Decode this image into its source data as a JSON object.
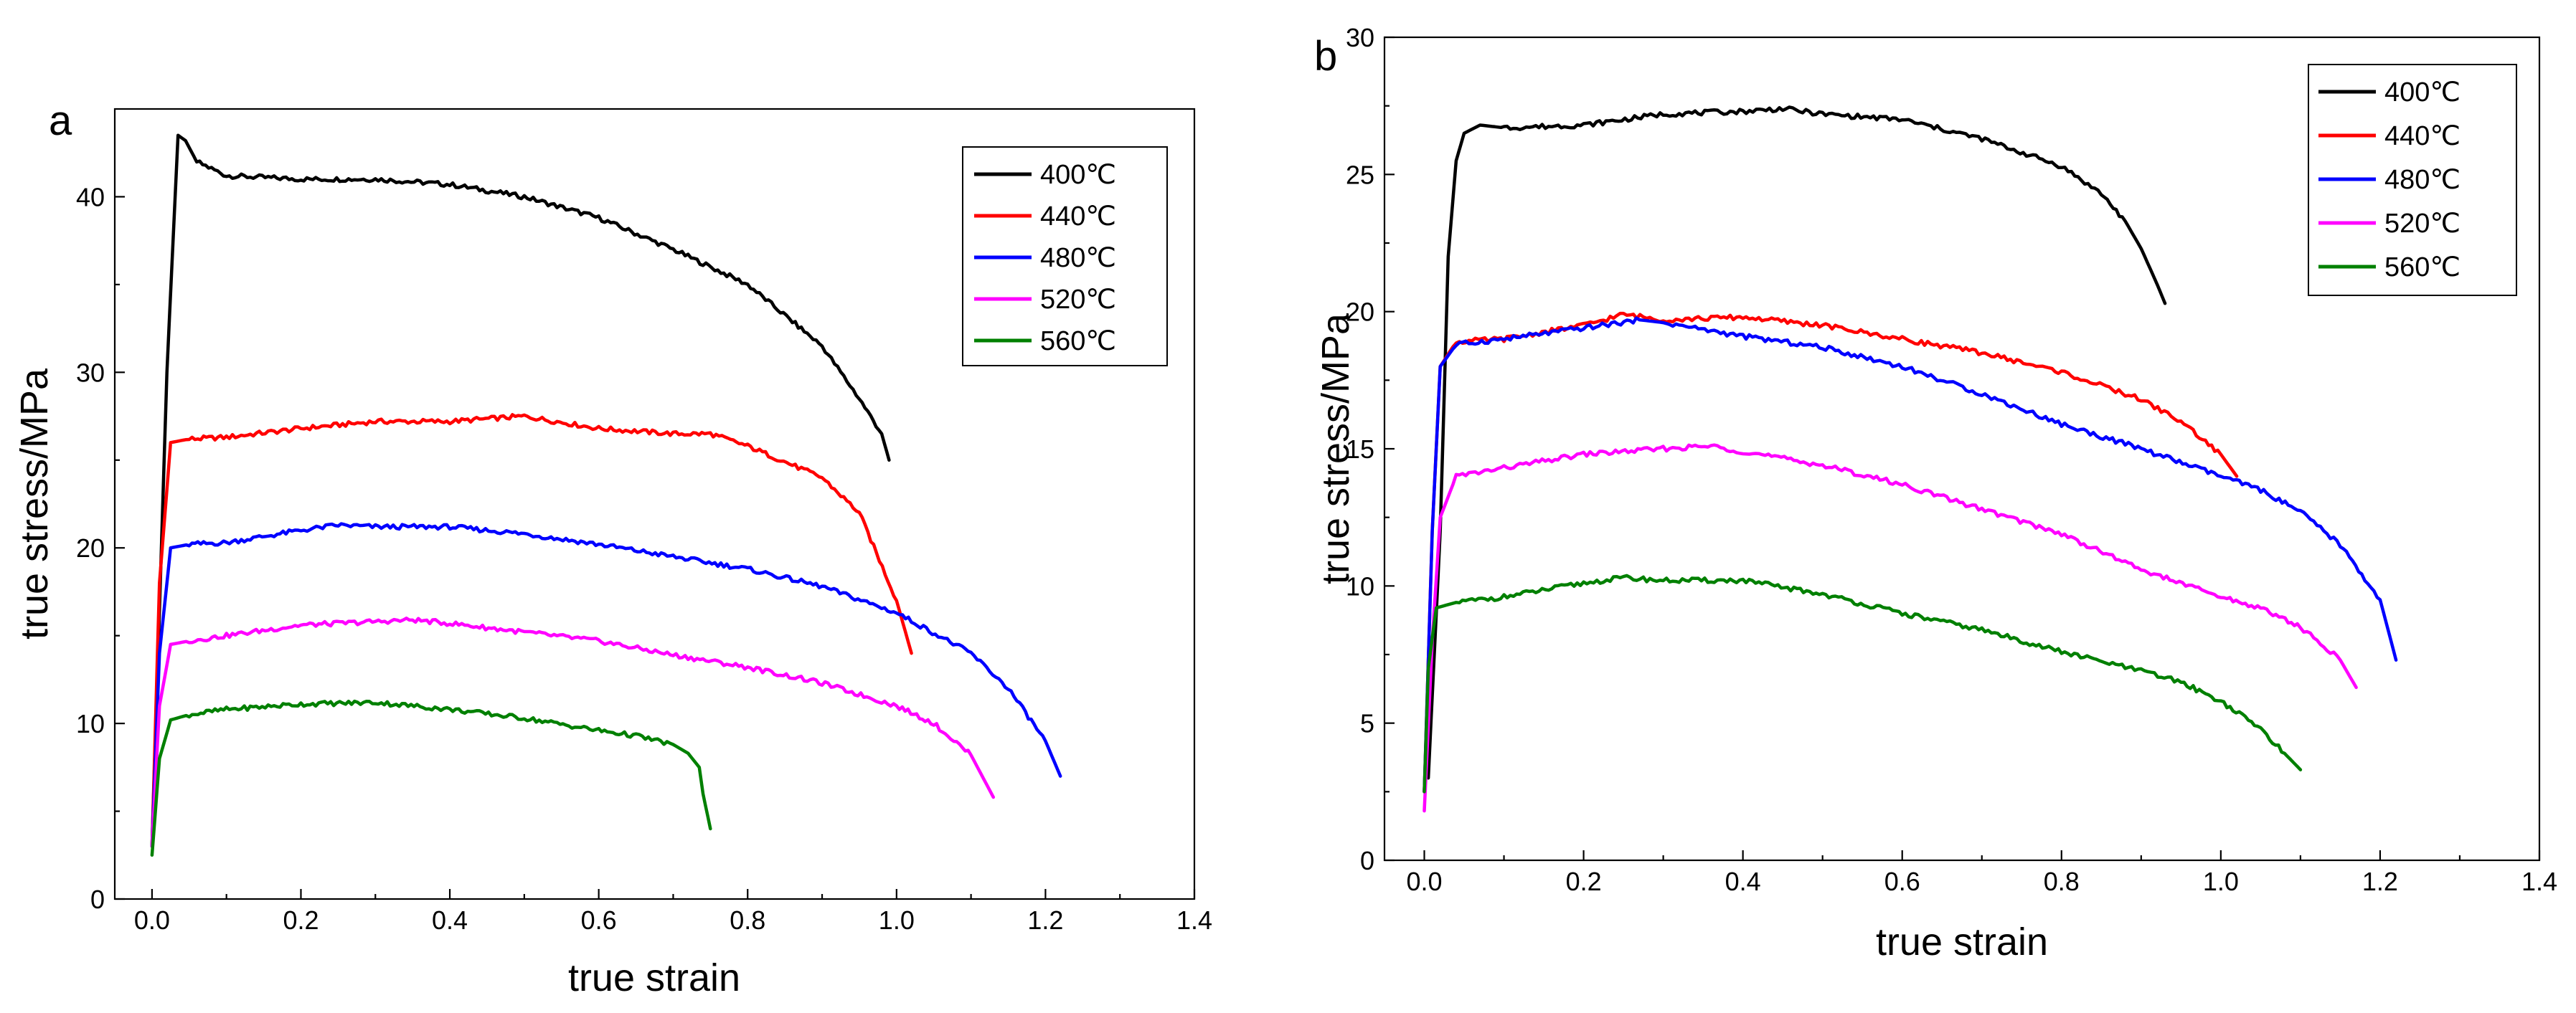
{
  "chart_data": [
    {
      "panel": "a",
      "type": "line",
      "xlabel": "true strain",
      "ylabel": "true stress/MPa",
      "xlim": [
        -0.05,
        1.4
      ],
      "ylim": [
        0,
        45
      ],
      "xticks": [
        0.0,
        0.2,
        0.4,
        0.6,
        0.8,
        1.0,
        1.2,
        1.4
      ],
      "xtick_labels": [
        "0.0",
        "0.2",
        "0.4",
        "0.6",
        "0.8",
        "1.0",
        "1.2",
        "1.4"
      ],
      "yticks": [
        0,
        10,
        20,
        30,
        40
      ],
      "ytick_labels": [
        "0",
        "10",
        "20",
        "30",
        "40"
      ],
      "legend_position": "top-right",
      "series": [
        {
          "name": "400℃",
          "color": "#000000",
          "x": [
            0.0,
            0.02,
            0.035,
            0.045,
            0.06,
            0.1,
            0.2,
            0.3,
            0.4,
            0.5,
            0.6,
            0.7,
            0.8,
            0.9,
            0.95,
            0.98,
            0.99
          ],
          "y": [
            3,
            30,
            43.5,
            43.2,
            42,
            41.2,
            41,
            41,
            40.7,
            40,
            38.8,
            37,
            35,
            31.5,
            28.5,
            26.5,
            25
          ]
        },
        {
          "name": "440℃",
          "color": "#ff0000",
          "x": [
            0.0,
            0.01,
            0.025,
            0.05,
            0.1,
            0.2,
            0.3,
            0.4,
            0.5,
            0.6,
            0.7,
            0.75,
            0.8,
            0.9,
            0.95,
            1.0,
            1.02
          ],
          "y": [
            3,
            18,
            26,
            26.2,
            26.3,
            26.8,
            27.2,
            27.2,
            27.5,
            26.8,
            26.5,
            26.5,
            25.8,
            24,
            22,
            17,
            14
          ]
        },
        {
          "name": "480℃",
          "color": "#0000ff",
          "x": [
            0.0,
            0.01,
            0.025,
            0.05,
            0.1,
            0.2,
            0.25,
            0.3,
            0.4,
            0.5,
            0.6,
            0.7,
            0.8,
            0.9,
            1.0,
            1.1,
            1.15,
            1.2,
            1.22
          ],
          "y": [
            3,
            14,
            20,
            20.2,
            20.3,
            21,
            21.3,
            21.2,
            21.2,
            20.8,
            20.2,
            19.5,
            18.8,
            17.8,
            16.3,
            14,
            12,
            9,
            7
          ]
        },
        {
          "name": "520℃",
          "color": "#ff00ff",
          "x": [
            0.0,
            0.01,
            0.025,
            0.05,
            0.1,
            0.2,
            0.3,
            0.35,
            0.4,
            0.5,
            0.6,
            0.7,
            0.8,
            0.9,
            1.0,
            1.05,
            1.1,
            1.13
          ],
          "y": [
            3,
            11,
            14.5,
            14.7,
            15,
            15.6,
            15.8,
            15.9,
            15.7,
            15.2,
            14.7,
            13.9,
            13.2,
            12.3,
            11,
            10,
            8.2,
            5.8
          ]
        },
        {
          "name": "560℃",
          "color": "#008000",
          "x": [
            0.0,
            0.01,
            0.025,
            0.05,
            0.1,
            0.2,
            0.3,
            0.4,
            0.5,
            0.6,
            0.65,
            0.7,
            0.72,
            0.735,
            0.74,
            0.75
          ],
          "y": [
            2.5,
            8,
            10.2,
            10.5,
            10.8,
            11.1,
            11.2,
            10.8,
            10.3,
            9.6,
            9.3,
            8.8,
            8.3,
            7.5,
            6,
            4
          ]
        }
      ]
    },
    {
      "panel": "b",
      "type": "line",
      "xlabel": "true strain",
      "ylabel": "true stress/MPa",
      "xlim": [
        -0.05,
        1.4
      ],
      "ylim": [
        0,
        30
      ],
      "xticks": [
        0.0,
        0.2,
        0.4,
        0.6,
        0.8,
        1.0,
        1.2,
        1.4
      ],
      "xtick_labels": [
        "0.0",
        "0.2",
        "0.4",
        "0.6",
        "0.8",
        "1.0",
        "1.2",
        "1.4"
      ],
      "yticks": [
        0,
        5,
        10,
        15,
        20,
        25,
        30
      ],
      "ytick_labels": [
        "0",
        "5",
        "10",
        "15",
        "20",
        "25",
        "30"
      ],
      "legend_position": "top-right",
      "series": [
        {
          "name": "400℃",
          "color": "#000000",
          "x": [
            0.005,
            0.02,
            0.03,
            0.04,
            0.05,
            0.07,
            0.1,
            0.2,
            0.3,
            0.4,
            0.45,
            0.5,
            0.6,
            0.7,
            0.8,
            0.85,
            0.88,
            0.9,
            0.92,
            0.93
          ],
          "y": [
            3,
            12,
            22,
            25.5,
            26.5,
            26.8,
            26.7,
            26.8,
            27.2,
            27.3,
            27.4,
            27.2,
            27,
            26.3,
            25.3,
            24.3,
            23.3,
            22.3,
            21,
            20.3
          ]
        },
        {
          "name": "440℃",
          "color": "#ff0000",
          "x": [
            0.0,
            0.01,
            0.02,
            0.04,
            0.1,
            0.2,
            0.25,
            0.3,
            0.4,
            0.5,
            0.6,
            0.7,
            0.8,
            0.9,
            0.95,
            1.0,
            1.02
          ],
          "y": [
            2.5,
            12,
            18,
            18.9,
            19,
            19.5,
            19.9,
            19.7,
            19.8,
            19.5,
            19,
            18.5,
            17.8,
            16.8,
            16,
            14.8,
            14
          ]
        },
        {
          "name": "480℃",
          "color": "#0000ff",
          "x": [
            0.0,
            0.01,
            0.02,
            0.04,
            0.1,
            0.2,
            0.27,
            0.3,
            0.4,
            0.5,
            0.6,
            0.7,
            0.8,
            0.9,
            1.0,
            1.05,
            1.1,
            1.15,
            1.2,
            1.22
          ],
          "y": [
            2.5,
            12,
            18,
            18.8,
            19,
            19.4,
            19.7,
            19.6,
            19.1,
            18.7,
            18,
            17,
            15.9,
            15,
            14,
            13.5,
            12.7,
            11.5,
            9.5,
            7.3
          ]
        },
        {
          "name": "520℃",
          "color": "#ff00ff",
          "x": [
            0.0,
            0.01,
            0.02,
            0.04,
            0.1,
            0.2,
            0.3,
            0.36,
            0.4,
            0.5,
            0.6,
            0.7,
            0.8,
            0.9,
            1.0,
            1.05,
            1.1,
            1.15,
            1.17
          ],
          "y": [
            1.8,
            8,
            12.5,
            14,
            14.3,
            14.8,
            15,
            15.1,
            14.9,
            14.4,
            13.7,
            12.8,
            11.9,
            10.6,
            9.6,
            9.2,
            8.5,
            7.3,
            6.3
          ]
        },
        {
          "name": "560℃",
          "color": "#008000",
          "x": [
            0.0,
            0.005,
            0.015,
            0.04,
            0.1,
            0.2,
            0.25,
            0.3,
            0.4,
            0.5,
            0.6,
            0.7,
            0.8,
            0.9,
            0.95,
            1.0,
            1.05,
            1.08,
            1.1
          ],
          "y": [
            2.5,
            7,
            9.2,
            9.4,
            9.6,
            10.1,
            10.3,
            10.2,
            10.2,
            9.7,
            9,
            8.4,
            7.6,
            6.9,
            6.5,
            5.8,
            4.8,
            3.9,
            3.3
          ]
        }
      ]
    }
  ]
}
